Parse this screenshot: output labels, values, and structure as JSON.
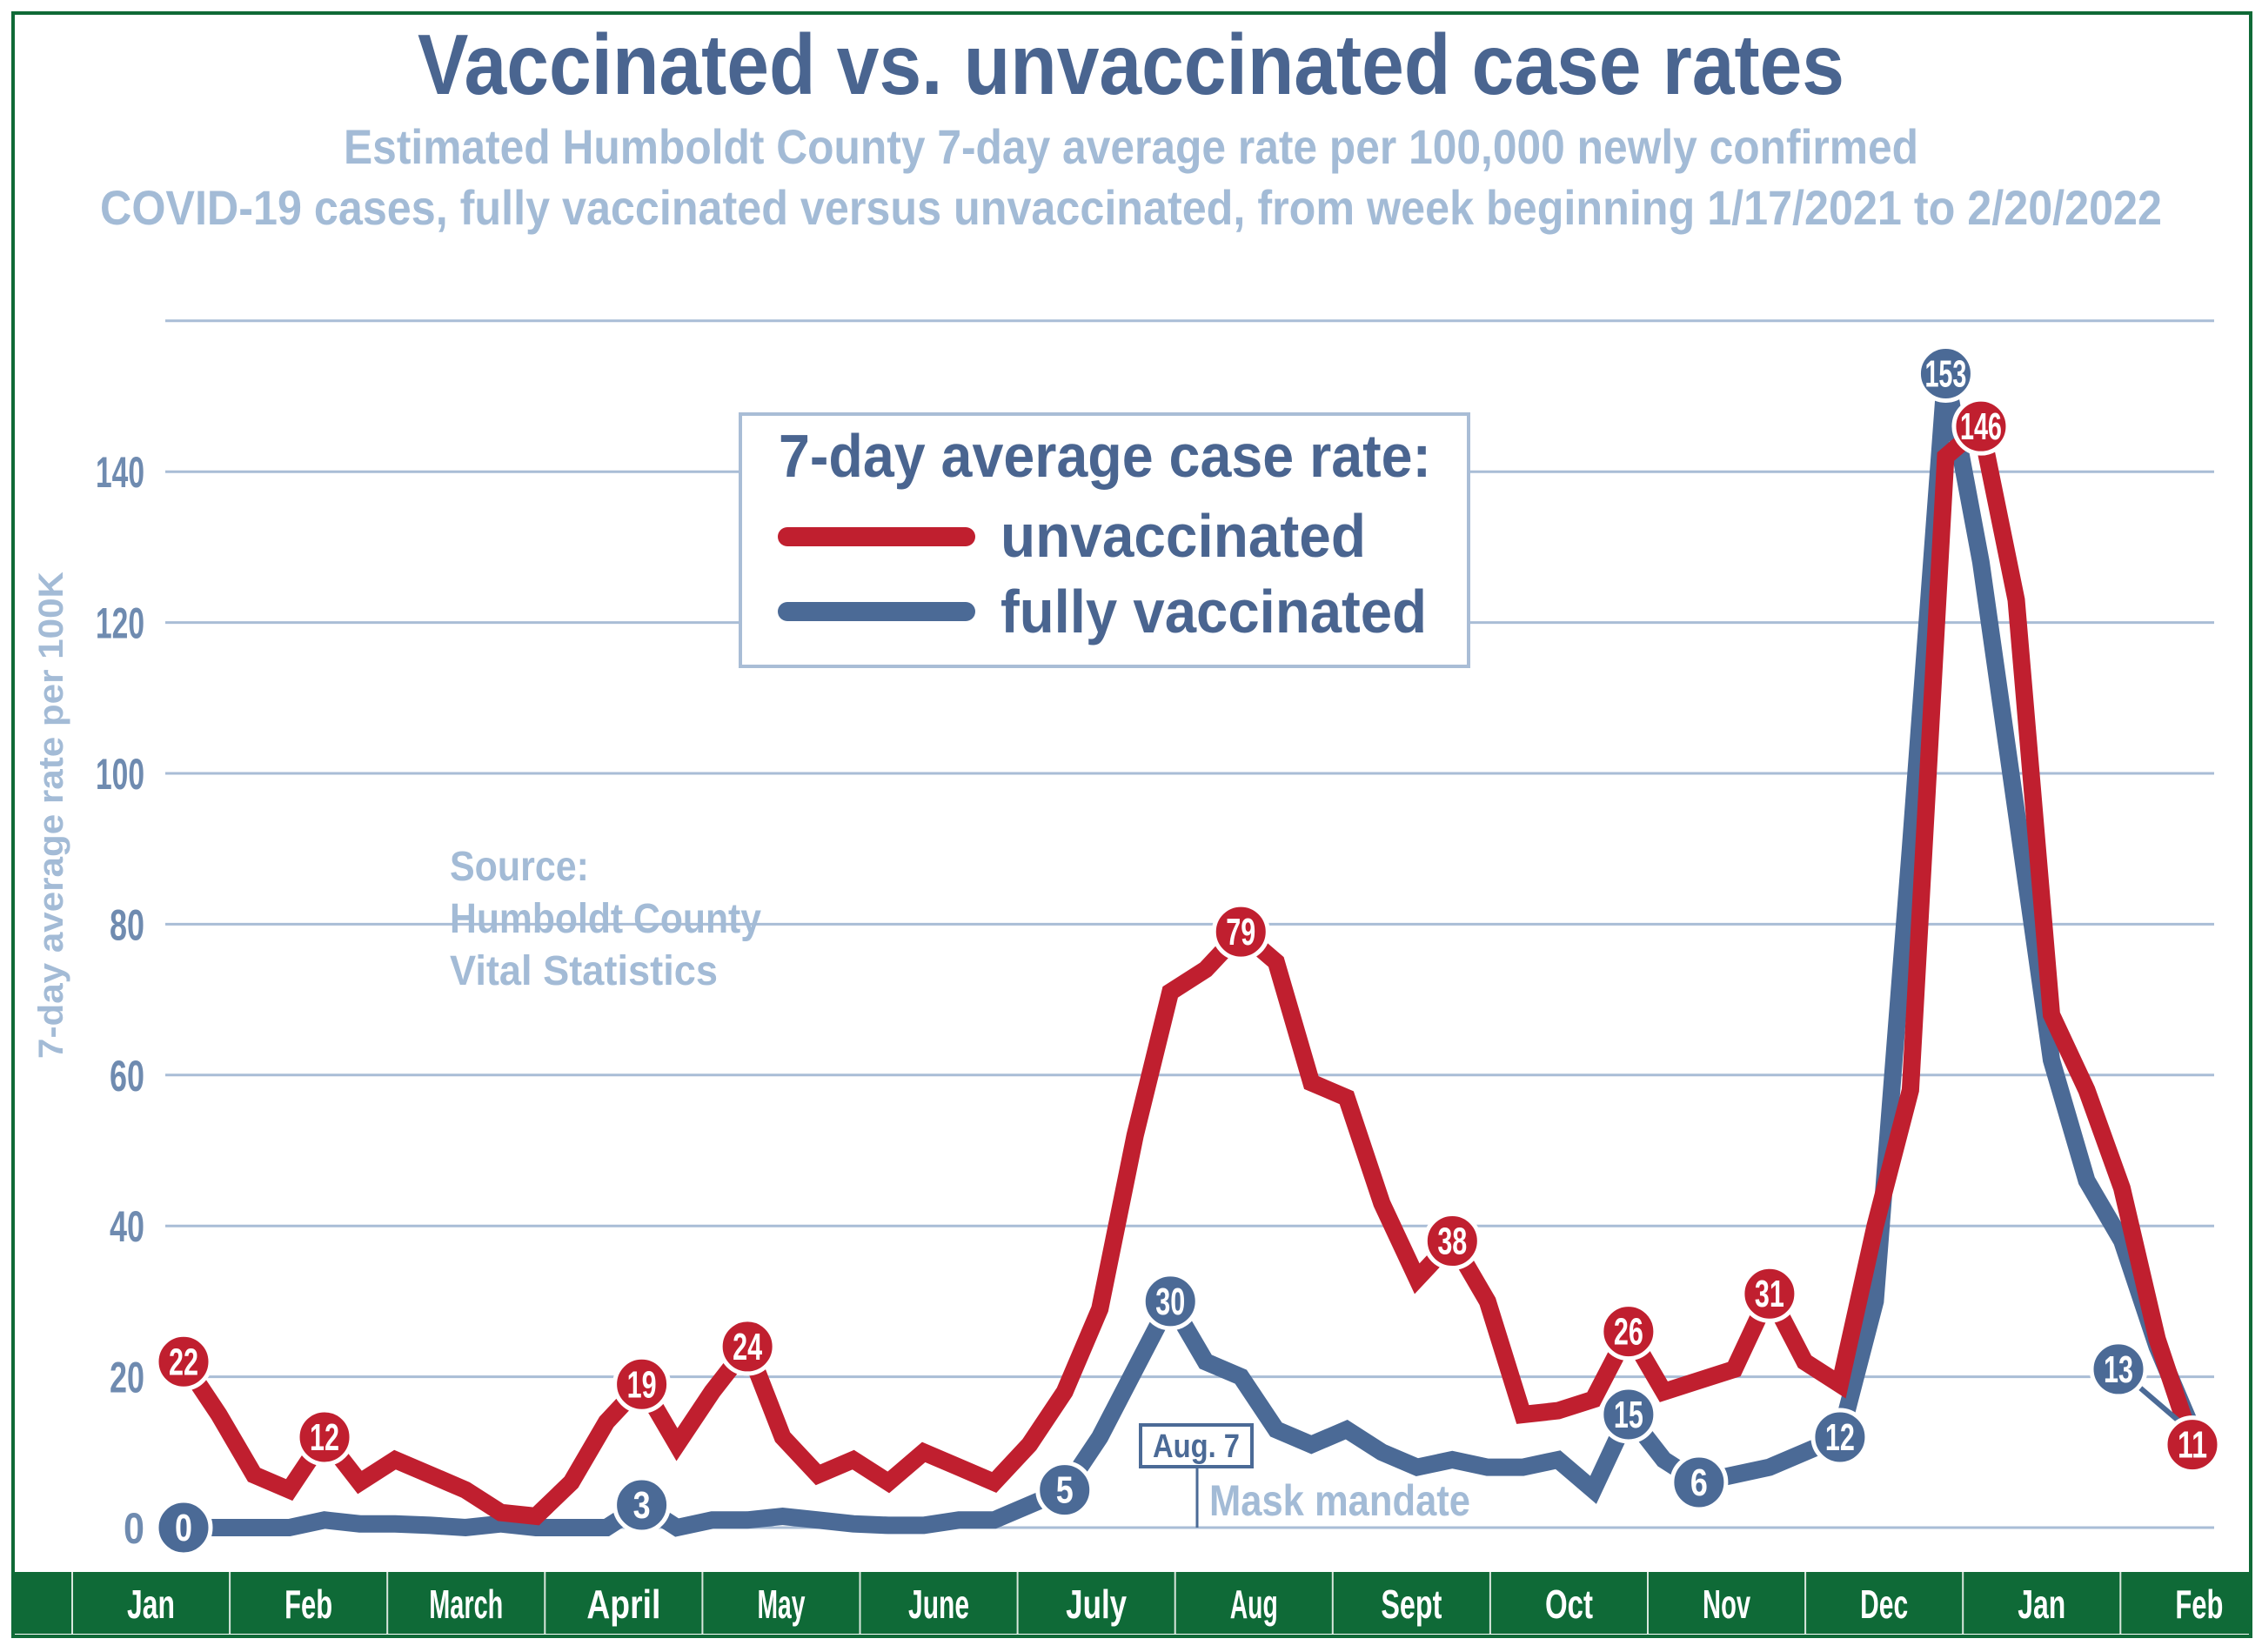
{
  "colors": {
    "unvaccinated": "#c01f2f",
    "vaccinated": "#4b6a96",
    "title": "#4a6590",
    "subtitle": "#a3bbd6",
    "grid": "#a9bdd6",
    "frame": "#0f6a37",
    "tick": "#6f8bb0"
  },
  "chart_data": {
    "type": "line",
    "title": "Vaccinated vs. unvaccinated case rates",
    "subtitle_lines": [
      "Estimated Humboldt County 7-day average rate per 100,000 newly confirmed",
      "COVID-19 cases,  fully vaccinated versus unvaccinated, from week beginning 1/17/2021 to 2/20/2022"
    ],
    "ylabel": "7-day average rate per 100K",
    "ylim": [
      0,
      160
    ],
    "yticks": [
      "0",
      "20",
      "40",
      "60",
      "80",
      "100",
      "120",
      "140"
    ],
    "ytick_values": [
      0,
      20,
      40,
      60,
      80,
      100,
      120,
      140
    ],
    "grid": true,
    "x_month_labels": [
      "Jan",
      "Feb",
      "March",
      "April",
      "May",
      "June",
      "July",
      "Aug",
      "Sept",
      "Oct",
      "Nov",
      "Dec",
      "Jan",
      "Feb"
    ],
    "legend": {
      "title": "7-day average case rate:",
      "placement": "top-center"
    },
    "series": [
      {
        "name": "unvaccinated",
        "values": [
          22,
          15,
          7,
          5,
          12,
          6,
          9,
          7,
          5,
          2,
          1.5,
          6,
          14,
          19,
          11,
          18,
          24,
          12,
          7,
          9,
          6,
          10,
          8,
          6,
          11,
          18,
          29,
          52,
          71,
          74,
          79,
          75,
          59,
          57,
          43,
          33,
          38,
          30,
          15,
          15.5,
          17,
          26,
          18,
          19.5,
          21,
          31,
          22,
          19,
          40,
          58,
          142,
          146,
          123,
          68,
          58,
          45,
          25,
          11
        ],
        "labeled_points": [
          {
            "index": 0,
            "label": "22"
          },
          {
            "index": 4,
            "label": "12"
          },
          {
            "index": 13,
            "label": "19"
          },
          {
            "index": 16,
            "label": "24"
          },
          {
            "index": 30,
            "label": "79"
          },
          {
            "index": 36,
            "label": "38"
          },
          {
            "index": 41,
            "label": "26"
          },
          {
            "index": 45,
            "label": "31"
          },
          {
            "index": 51,
            "label": "146"
          },
          {
            "index": 57,
            "label": "11"
          }
        ]
      },
      {
        "name": "fully vaccinated",
        "values": [
          0,
          0,
          0,
          0,
          1,
          0.5,
          0.5,
          0.3,
          0,
          0.5,
          0,
          0,
          0,
          3,
          0,
          1,
          1,
          1.5,
          1,
          0.5,
          0.3,
          0.3,
          1,
          1,
          3,
          5,
          12,
          21,
          30,
          22,
          20,
          13,
          11,
          13,
          10,
          8,
          9,
          8,
          8,
          9,
          5,
          15,
          9,
          6,
          7,
          8,
          10,
          12,
          30,
          90,
          153,
          128,
          95,
          62,
          46,
          38,
          24,
          13
        ],
        "labeled_points": [
          {
            "index": 0,
            "label": "0"
          },
          {
            "index": 13,
            "label": "3"
          },
          {
            "index": 25,
            "label": "5"
          },
          {
            "index": 28,
            "label": "30"
          },
          {
            "index": 41,
            "label": "15"
          },
          {
            "index": 43,
            "label": "6"
          },
          {
            "index": 47,
            "label": "12"
          },
          {
            "index": 50,
            "label": "153"
          },
          {
            "index": 57,
            "label": "13"
          }
        ]
      }
    ],
    "annotations": {
      "source_lines": [
        "Source:",
        "Humboldt County",
        "Vital Statistics"
      ],
      "event_date": "Aug. 7",
      "event_label": "Mask mandate"
    }
  }
}
